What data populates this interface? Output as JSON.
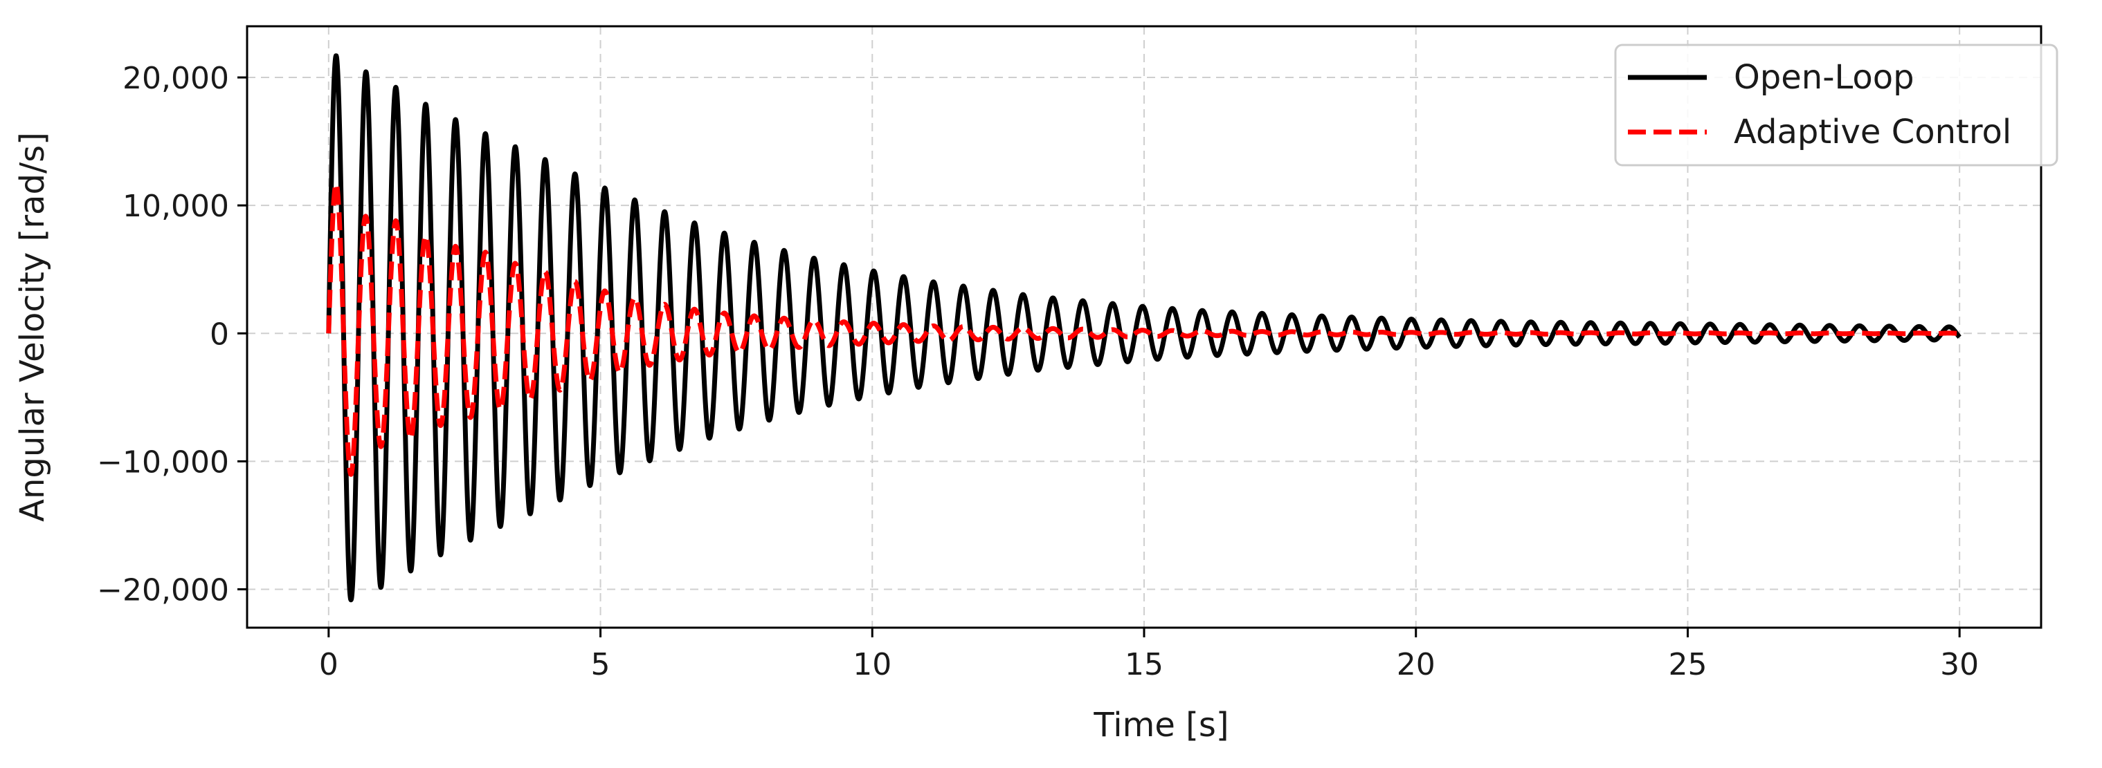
{
  "chart_data": {
    "type": "line",
    "title": "",
    "xlabel": "Time [s]",
    "ylabel": "Angular Velocity [rad/s]",
    "xlim": [
      -1.5,
      31.5
    ],
    "ylim": [
      -23000,
      24000
    ],
    "x_ticks": [
      0,
      5,
      10,
      15,
      20,
      25,
      30
    ],
    "x_tick_labels": [
      "0",
      "5",
      "10",
      "15",
      "20",
      "25",
      "30"
    ],
    "y_ticks": [
      20000,
      10000,
      0,
      -10000,
      -20000
    ],
    "y_tick_labels": [
      "20,000",
      "10,000",
      "0",
      "−10,000",
      "−20,000"
    ],
    "grid": true,
    "legend_position": "top-right",
    "series": [
      {
        "name": "Open-Loop",
        "color": "#000000",
        "style": "solid",
        "frequency_hz": 1.82,
        "peaks": [
          [
            0.15,
            21700
          ],
          [
            0.42,
            -20800
          ],
          [
            0.72,
            20400
          ],
          [
            1.25,
            19200
          ],
          [
            1.79,
            17900
          ],
          [
            2.34,
            16700
          ],
          [
            2.94,
            15500
          ],
          [
            3.48,
            14500
          ],
          [
            3.88,
            -13800
          ],
          [
            5.0,
            11500
          ],
          [
            6.0,
            9800
          ],
          [
            7.0,
            8200
          ],
          [
            8.0,
            6900
          ],
          [
            9.0,
            5800
          ],
          [
            10.0,
            4900
          ],
          [
            11.0,
            4100
          ],
          [
            12.0,
            3500
          ],
          [
            13.0,
            2900
          ],
          [
            14.0,
            2500
          ],
          [
            15.0,
            2100
          ],
          [
            16.0,
            1800
          ],
          [
            17.0,
            1600
          ],
          [
            18.0,
            1400
          ],
          [
            20.0,
            1100
          ],
          [
            22.0,
            900
          ],
          [
            25.0,
            750
          ],
          [
            28.0,
            600
          ],
          [
            30.0,
            500
          ]
        ]
      },
      {
        "name": "Adaptive Control",
        "color": "#ff0000",
        "style": "dashed",
        "frequency_hz": 1.82,
        "peaks": [
          [
            0.15,
            11700
          ],
          [
            0.42,
            -11000
          ],
          [
            0.72,
            8900
          ],
          [
            1.25,
            8800
          ],
          [
            1.79,
            7600
          ],
          [
            2.34,
            6800
          ],
          [
            2.94,
            6300
          ],
          [
            3.48,
            5400
          ],
          [
            4.0,
            4800
          ],
          [
            5.0,
            3400
          ],
          [
            6.0,
            2400
          ],
          [
            7.0,
            1700
          ],
          [
            8.0,
            1300
          ],
          [
            9.0,
            1000
          ],
          [
            10.0,
            800
          ],
          [
            11.0,
            600
          ],
          [
            12.0,
            500
          ],
          [
            13.0,
            400
          ],
          [
            15.0,
            250
          ],
          [
            17.0,
            150
          ],
          [
            20.0,
            80
          ],
          [
            25.0,
            40
          ],
          [
            30.0,
            20
          ]
        ]
      }
    ]
  }
}
